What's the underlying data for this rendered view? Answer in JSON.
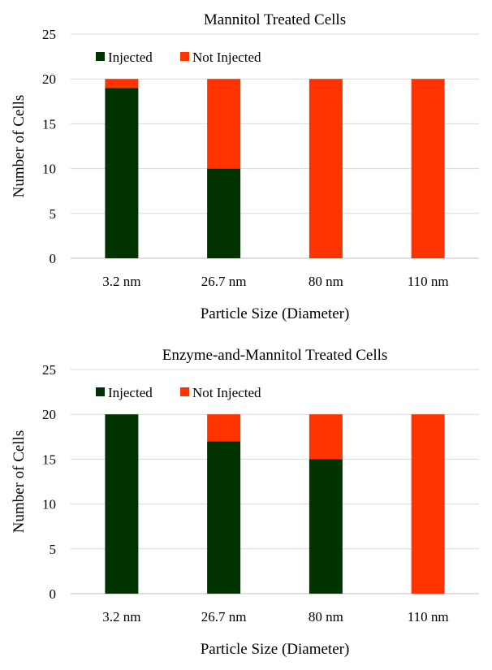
{
  "chart_data": [
    {
      "type": "bar",
      "stacked": true,
      "title": "Mannitol Treated Cells",
      "xlabel": "Particle Size (Diameter)",
      "ylabel": "Number of Cells",
      "ylim": [
        0,
        25
      ],
      "yticks": [
        0,
        5,
        10,
        15,
        20,
        25
      ],
      "categories": [
        "3.2 nm",
        "26.7 nm",
        "80 nm",
        "110 nm"
      ],
      "legend_position": "top-left",
      "grid": true,
      "series": [
        {
          "name": "Injected",
          "color": "#003300",
          "values": [
            19,
            10,
            0,
            0
          ]
        },
        {
          "name": "Not Injected",
          "color": "#ff3300",
          "values": [
            1,
            10,
            20,
            20
          ]
        }
      ]
    },
    {
      "type": "bar",
      "stacked": true,
      "title": "Enzyme-and-Mannitol Treated Cells",
      "xlabel": "Particle Size (Diameter)",
      "ylabel": "Number of Cells",
      "ylim": [
        0,
        25
      ],
      "yticks": [
        0,
        5,
        10,
        15,
        20,
        25
      ],
      "categories": [
        "3.2 nm",
        "26.7 nm",
        "80 nm",
        "110 nm"
      ],
      "legend_position": "top-left",
      "grid": true,
      "series": [
        {
          "name": "Injected",
          "color": "#003300",
          "values": [
            20,
            17,
            15,
            0
          ]
        },
        {
          "name": "Not Injected",
          "color": "#ff3300",
          "values": [
            0,
            3,
            5,
            20
          ]
        }
      ]
    }
  ]
}
